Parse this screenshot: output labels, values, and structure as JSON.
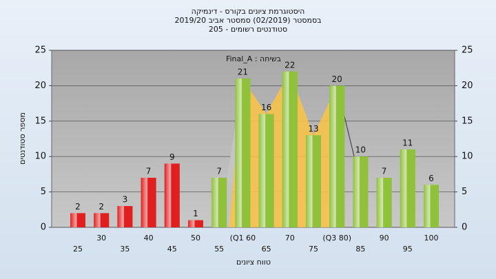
{
  "chart_data": {
    "type": "bar",
    "title": "היסטוגרמת ציונים בקורס - דינמיקה",
    "subtitle": "בסמסטר  (02/2019)  סמסטר אביב 2019/20",
    "subtitle2": "205 - סטודנטים רשומים",
    "annotation": "Final_A : בשיחה",
    "x_label": "טווח ציונים",
    "y_label": "מספר סטודנטים",
    "categories": [
      "25",
      "30",
      "35",
      "40",
      "45",
      "50",
      "55",
      "(Q1 60",
      "65",
      "70",
      "75",
      "(Q3 80)",
      "85",
      "90",
      "95",
      "100"
    ],
    "values": [
      2,
      2,
      3,
      7,
      9,
      1,
      7,
      21,
      16,
      22,
      13,
      20,
      10,
      7,
      11,
      6
    ],
    "colors": [
      "#e02020",
      "#e02020",
      "#e02020",
      "#e02020",
      "#e02020",
      "#e02020",
      "#8fc13a",
      "#8fc13a",
      "#8fc13a",
      "#8fc13a",
      "#8fc13a",
      "#8fc13a",
      "#8fc13a",
      "#8fc13a",
      "#8fc13a",
      "#8fc13a"
    ],
    "ylim": [
      0,
      25
    ],
    "yticks": [
      0,
      5,
      10,
      15,
      20,
      25
    ],
    "y2lim": [
      0,
      25
    ],
    "y2ticks": [
      0,
      5,
      10,
      15,
      20,
      25
    ],
    "grid": true
  }
}
